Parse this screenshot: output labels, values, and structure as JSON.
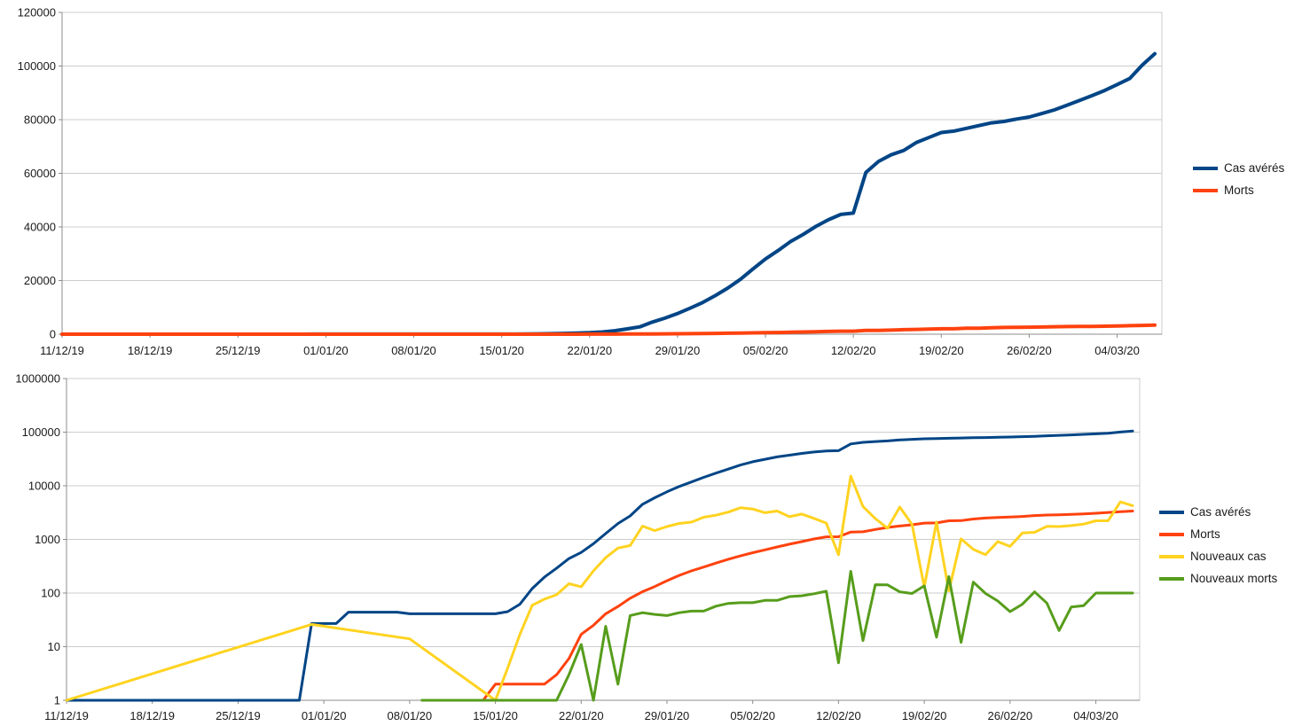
{
  "page": {
    "background": "#ffffff"
  },
  "chart_data": [
    {
      "id": "cumulative-linear",
      "type": "line",
      "scale": "linear",
      "grid": "horizontal",
      "legend_position": "right",
      "ylim": [
        0,
        120000
      ],
      "y_ticks": [
        0,
        20000,
        40000,
        60000,
        80000,
        100000,
        120000
      ],
      "x_tick_labels": [
        "11/12/19",
        "18/12/19",
        "25/12/19",
        "01/01/20",
        "08/01/20",
        "15/01/20",
        "22/01/20",
        "29/01/20",
        "05/02/20",
        "12/02/20",
        "19/02/20",
        "26/02/20",
        "04/03/20"
      ],
      "x_tick_indices": [
        0,
        7,
        14,
        21,
        28,
        35,
        42,
        49,
        56,
        63,
        70,
        77,
        84
      ],
      "x_dates": [
        "11/12/19",
        "12/12/19",
        "13/12/19",
        "14/12/19",
        "15/12/19",
        "16/12/19",
        "17/12/19",
        "18/12/19",
        "19/12/19",
        "20/12/19",
        "21/12/19",
        "22/12/19",
        "23/12/19",
        "24/12/19",
        "25/12/19",
        "26/12/19",
        "27/12/19",
        "28/12/19",
        "29/12/19",
        "30/12/19",
        "31/12/19",
        "01/01/20",
        "02/01/20",
        "03/01/20",
        "04/01/20",
        "05/01/20",
        "06/01/20",
        "07/01/20",
        "08/01/20",
        "09/01/20",
        "10/01/20",
        "11/01/20",
        "12/01/20",
        "13/01/20",
        "14/01/20",
        "15/01/20",
        "16/01/20",
        "17/01/20",
        "18/01/20",
        "19/01/20",
        "20/01/20",
        "21/01/20",
        "22/01/20",
        "23/01/20",
        "24/01/20",
        "25/01/20",
        "26/01/20",
        "27/01/20",
        "28/01/20",
        "29/01/20",
        "30/01/20",
        "31/01/20",
        "01/02/20",
        "02/02/20",
        "03/02/20",
        "04/02/20",
        "05/02/20",
        "06/02/20",
        "07/02/20",
        "08/02/20",
        "09/02/20",
        "10/02/20",
        "11/02/20",
        "12/02/20",
        "13/02/20",
        "14/02/20",
        "15/02/20",
        "16/02/20",
        "17/02/20",
        "18/02/20",
        "19/02/20",
        "20/02/20",
        "21/02/20",
        "22/02/20",
        "23/02/20",
        "24/02/20",
        "25/02/20",
        "26/02/20",
        "27/02/20",
        "28/02/20",
        "29/02/20",
        "01/03/20",
        "02/03/20",
        "03/03/20",
        "04/03/20",
        "05/03/20",
        "06/03/20",
        "07/03/20"
      ],
      "series": [
        {
          "name": "Cas avérés",
          "color": "#004586",
          "values": [
            1,
            1,
            1,
            1,
            1,
            1,
            1,
            1,
            1,
            1,
            1,
            1,
            1,
            1,
            1,
            1,
            1,
            1,
            1,
            1,
            27,
            27,
            27,
            44,
            44,
            44,
            44,
            44,
            41,
            41,
            41,
            41,
            41,
            41,
            41,
            41,
            45,
            62,
            121,
            198,
            291,
            440,
            571,
            830,
            1287,
            1975,
            2744,
            4515,
            5974,
            7711,
            9692,
            11791,
            14380,
            17205,
            20438,
            24324,
            28018,
            31161,
            34546,
            37198,
            40171,
            42638,
            44653,
            45171,
            60328,
            64437,
            66885,
            68500,
            71429,
            73332,
            75204,
            75748,
            76769,
            77794,
            78811,
            79331,
            80239,
            80980,
            82294,
            83652,
            85403,
            87137,
            88948,
            90870,
            93091,
            95324,
            100330,
            104586
          ]
        },
        {
          "name": "Morts",
          "color": "#FF420E",
          "values": [
            0,
            0,
            0,
            0,
            0,
            0,
            0,
            0,
            0,
            0,
            0,
            0,
            0,
            0,
            0,
            0,
            0,
            0,
            0,
            0,
            0,
            0,
            0,
            0,
            0,
            0,
            0,
            0,
            0,
            0,
            0,
            0,
            0,
            0,
            1,
            2,
            2,
            2,
            2,
            2,
            3,
            6,
            17,
            25,
            41,
            56,
            80,
            106,
            132,
            170,
            213,
            259,
            305,
            362,
            426,
            492,
            565,
            638,
            724,
            813,
            910,
            1018,
            1115,
            1120,
            1374,
            1387,
            1530,
            1672,
            1777,
            1875,
            2011,
            2026,
            2228,
            2240,
            2400,
            2498,
            2569,
            2614,
            2676,
            2781,
            2846,
            2866,
            2921,
            2979,
            3079,
            3179,
            3279,
            3379
          ]
        }
      ]
    },
    {
      "id": "cumulative-and-daily-log",
      "type": "line",
      "scale": "log",
      "grid": "horizontal",
      "legend_position": "right",
      "ylim": [
        1,
        1000000
      ],
      "y_ticks": [
        1,
        10,
        100,
        1000,
        10000,
        100000,
        1000000
      ],
      "x_tick_labels": [
        "11/12/19",
        "18/12/19",
        "25/12/19",
        "01/01/20",
        "08/01/20",
        "15/01/20",
        "22/01/20",
        "29/01/20",
        "05/02/20",
        "12/02/20",
        "19/02/20",
        "26/02/20",
        "04/03/20"
      ],
      "x_tick_indices": [
        0,
        7,
        14,
        21,
        28,
        35,
        42,
        49,
        56,
        63,
        70,
        77,
        84
      ],
      "x_dates": [
        "11/12/19",
        "12/12/19",
        "13/12/19",
        "14/12/19",
        "15/12/19",
        "16/12/19",
        "17/12/19",
        "18/12/19",
        "19/12/19",
        "20/12/19",
        "21/12/19",
        "22/12/19",
        "23/12/19",
        "24/12/19",
        "25/12/19",
        "26/12/19",
        "27/12/19",
        "28/12/19",
        "29/12/19",
        "30/12/19",
        "31/12/19",
        "01/01/20",
        "02/01/20",
        "03/01/20",
        "04/01/20",
        "05/01/20",
        "06/01/20",
        "07/01/20",
        "08/01/20",
        "09/01/20",
        "10/01/20",
        "11/01/20",
        "12/01/20",
        "13/01/20",
        "14/01/20",
        "15/01/20",
        "16/01/20",
        "17/01/20",
        "18/01/20",
        "19/01/20",
        "20/01/20",
        "21/01/20",
        "22/01/20",
        "23/01/20",
        "24/01/20",
        "25/01/20",
        "26/01/20",
        "27/01/20",
        "28/01/20",
        "29/01/20",
        "30/01/20",
        "31/01/20",
        "01/02/20",
        "02/02/20",
        "03/02/20",
        "04/02/20",
        "05/02/20",
        "06/02/20",
        "07/02/20",
        "08/02/20",
        "09/02/20",
        "10/02/20",
        "11/02/20",
        "12/02/20",
        "13/02/20",
        "14/02/20",
        "15/02/20",
        "16/02/20",
        "17/02/20",
        "18/02/20",
        "19/02/20",
        "20/02/20",
        "21/02/20",
        "22/02/20",
        "23/02/20",
        "24/02/20",
        "25/02/20",
        "26/02/20",
        "27/02/20",
        "28/02/20",
        "29/02/20",
        "01/03/20",
        "02/03/20",
        "03/03/20",
        "04/03/20",
        "05/03/20",
        "06/03/20",
        "07/03/20"
      ],
      "series": [
        {
          "name": "Cas avérés",
          "color": "#004586",
          "values": [
            1,
            1,
            1,
            1,
            1,
            1,
            1,
            1,
            1,
            1,
            1,
            1,
            1,
            1,
            1,
            1,
            1,
            1,
            1,
            1,
            27,
            27,
            27,
            44,
            44,
            44,
            44,
            44,
            41,
            41,
            41,
            41,
            41,
            41,
            41,
            41,
            45,
            62,
            121,
            198,
            291,
            440,
            571,
            830,
            1287,
            1975,
            2744,
            4515,
            5974,
            7711,
            9692,
            11791,
            14380,
            17205,
            20438,
            24324,
            28018,
            31161,
            34546,
            37198,
            40171,
            42638,
            44653,
            45171,
            60328,
            64437,
            66885,
            68500,
            71429,
            73332,
            75204,
            75748,
            76769,
            77794,
            78811,
            79331,
            80239,
            80980,
            82294,
            83652,
            85403,
            87137,
            88948,
            90870,
            93091,
            95324,
            100330,
            104586
          ]
        },
        {
          "name": "Morts",
          "color": "#FF420E",
          "values": [
            null,
            null,
            null,
            null,
            null,
            null,
            null,
            null,
            null,
            null,
            null,
            null,
            null,
            null,
            null,
            null,
            null,
            null,
            null,
            null,
            null,
            null,
            null,
            null,
            null,
            null,
            null,
            null,
            null,
            null,
            null,
            null,
            null,
            null,
            1,
            2,
            2,
            2,
            2,
            2,
            3,
            6,
            17,
            25,
            41,
            56,
            80,
            106,
            132,
            170,
            213,
            259,
            305,
            362,
            426,
            492,
            565,
            638,
            724,
            813,
            910,
            1018,
            1115,
            1120,
            1374,
            1387,
            1530,
            1672,
            1777,
            1875,
            2011,
            2026,
            2228,
            2240,
            2400,
            2498,
            2569,
            2614,
            2676,
            2781,
            2846,
            2866,
            2921,
            2979,
            3079,
            3179,
            3279,
            3379
          ]
        },
        {
          "name": "Nouveaux cas",
          "color": "#FFD320",
          "values": [
            1,
            null,
            null,
            null,
            null,
            null,
            null,
            null,
            null,
            null,
            null,
            null,
            null,
            null,
            null,
            null,
            null,
            null,
            null,
            null,
            26,
            null,
            null,
            null,
            null,
            null,
            null,
            null,
            14,
            null,
            null,
            null,
            null,
            null,
            null,
            1,
            4,
            17,
            59,
            77,
            93,
            149,
            131,
            259,
            457,
            688,
            769,
            1771,
            1459,
            1737,
            1981,
            2099,
            2589,
            2825,
            3233,
            3886,
            3694,
            3143,
            3385,
            2652,
            2973,
            2467,
            2015,
            518,
            15157,
            4109,
            2448,
            1615,
            4012,
            1903,
            130,
            2098,
            110,
            1025,
            650,
            520,
            908,
            741,
            1314,
            1358,
            1751,
            1734,
            1811,
            1922,
            2221,
            2233,
            5006,
            4256
          ]
        },
        {
          "name": "Nouveaux morts",
          "color": "#579D1C",
          "values": [
            null,
            null,
            null,
            null,
            null,
            null,
            null,
            null,
            null,
            null,
            null,
            null,
            null,
            null,
            null,
            null,
            null,
            null,
            null,
            null,
            null,
            null,
            null,
            null,
            null,
            null,
            null,
            null,
            null,
            1,
            1,
            1,
            1,
            1,
            1,
            1,
            1,
            1,
            1,
            1,
            1,
            3,
            11,
            1,
            24,
            2,
            38,
            43,
            40,
            38,
            43,
            46,
            46,
            57,
            64,
            66,
            66,
            73,
            73,
            86,
            89,
            97,
            108,
            5,
            254,
            13,
            143,
            142,
            105,
            98,
            136,
            15,
            202,
            12,
            160,
            98,
            71,
            45,
            62,
            105,
            65,
            20,
            55,
            58,
            100,
            100,
            100,
            100
          ]
        }
      ]
    }
  ]
}
